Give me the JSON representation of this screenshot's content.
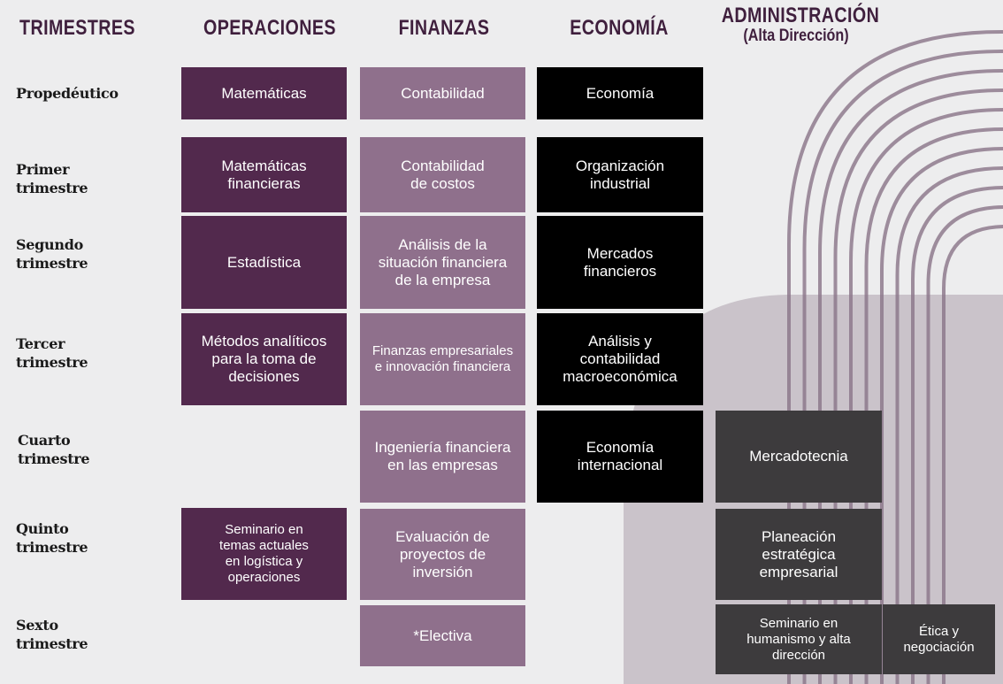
{
  "colors": {
    "operaciones": "#52294d",
    "finanzas": "#8f708c",
    "economia": "#000000",
    "administracion": "#3d3b3d",
    "header_text": "#3f1f3d",
    "decor": "#8a7588"
  },
  "headers": {
    "trimestres": "TRIMESTRES",
    "operaciones": "OPERACIONES",
    "finanzas": "FINANZAS",
    "economia": "ECONOMÍA",
    "administracion": "ADMINISTRACIÓN",
    "administracion_sub": "(Alta Dirección)"
  },
  "rows": [
    "Propedéutico",
    "Primer trimestre",
    "Segundo trimestre",
    "Tercer trimestre",
    "Cuarto trimestre",
    "Quinto trimestre",
    "Sexto trimestre"
  ],
  "operaciones": [
    "Matemáticas",
    "Matemáticas financieras",
    "Estadística",
    "Métodos analíticos para la toma de decisiones",
    "Seminario en temas actuales en logística y operaciones"
  ],
  "finanzas": [
    "Contabilidad",
    "Contabilidad de costos",
    "Análisis de la situación financiera de la empresa",
    "Finanzas empresariales e innovación financiera",
    "Ingeniería financiera en las empresas",
    "Evaluación de proyectos de inversión",
    "*Electiva"
  ],
  "economia": [
    "Economía",
    "Organización industrial",
    "Mercados financieros",
    "Análisis y contabilidad macroeconómica",
    "Economía internacional"
  ],
  "administracion": [
    "Mercadotecnia",
    "Planeación estratégica empresarial",
    "Seminario en humanismo y alta dirección",
    "Ética y negociación"
  ]
}
